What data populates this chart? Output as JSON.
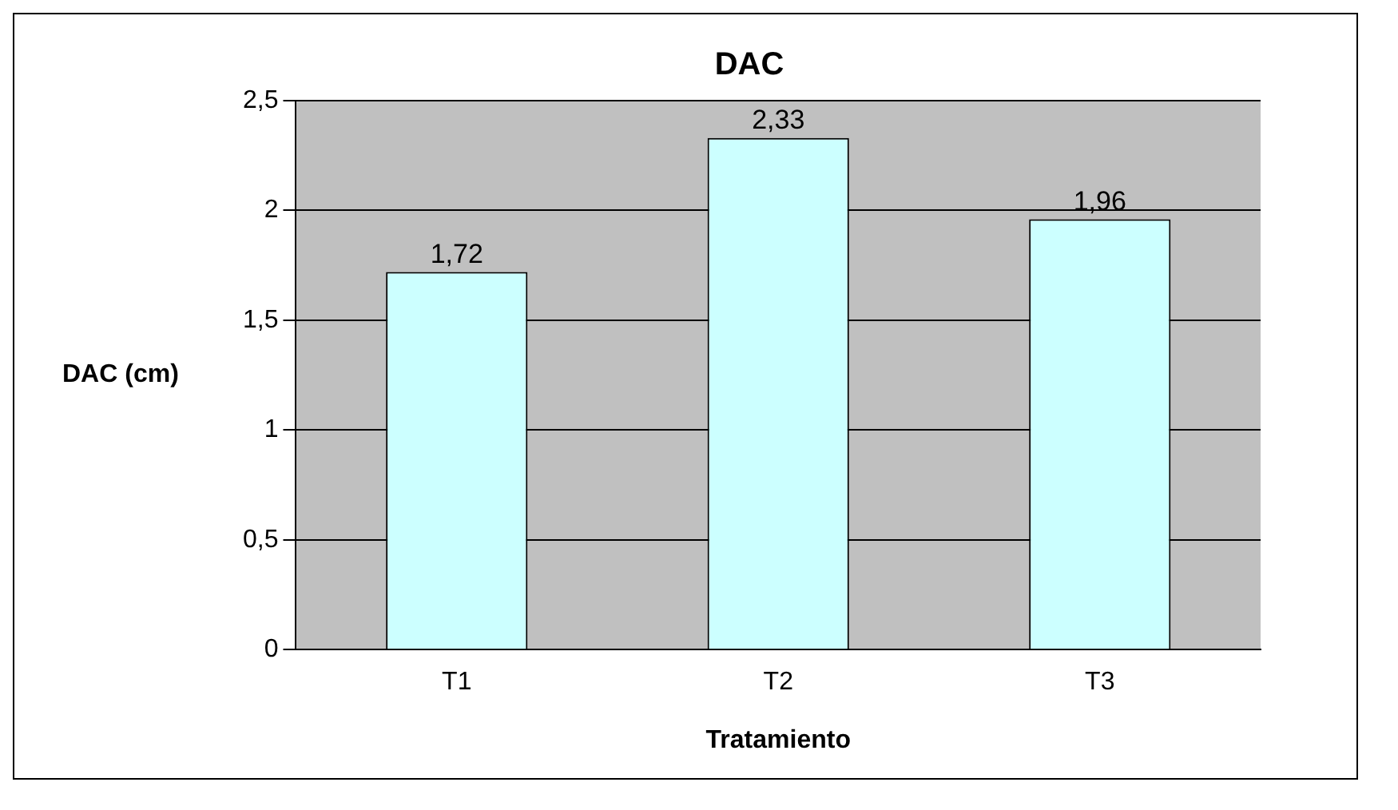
{
  "chart_data": {
    "type": "bar",
    "title": "DAC",
    "xlabel": "Tratamiento",
    "ylabel": "DAC (cm)",
    "categories": [
      "T1",
      "T2",
      "T3"
    ],
    "values": [
      1.72,
      2.33,
      1.96
    ],
    "value_labels": [
      "1,72",
      "2,33",
      "1,96"
    ],
    "color": "#ccffff",
    "ylim": [
      0,
      2.5
    ],
    "yticks": [
      0,
      {
        "value": 0.5,
        "label": "0,5"
      },
      1,
      {
        "value": 1.5,
        "label": "1,5"
      },
      2,
      {
        "value": 2.5,
        "label": "2,5"
      }
    ],
    "grid": "y",
    "legend": false
  }
}
